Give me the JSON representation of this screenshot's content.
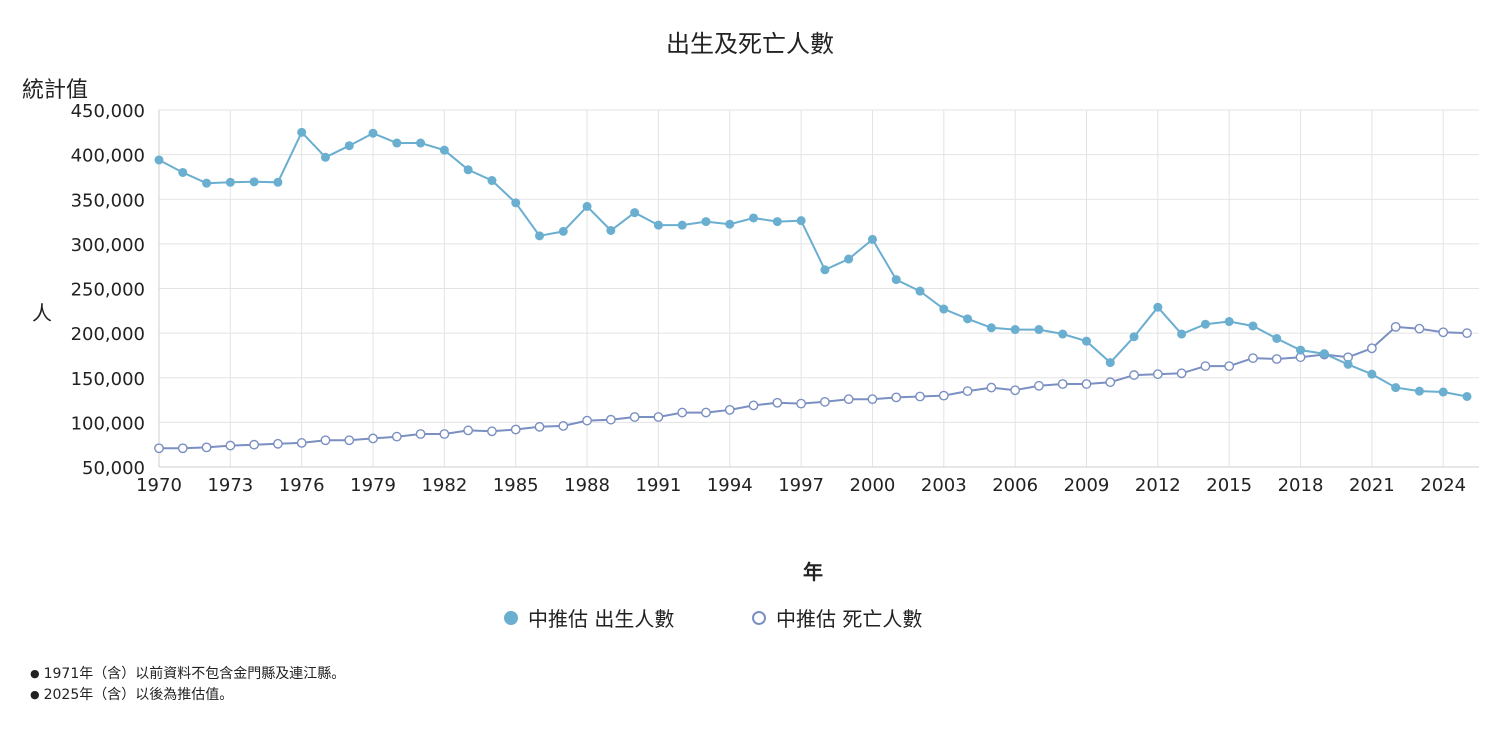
{
  "chart_data": {
    "type": "line",
    "title": "出生及死亡人數",
    "ylabel_top": "統計值",
    "ylabel": "人",
    "xlabel": "年",
    "ylim": [
      50000,
      450000
    ],
    "yticks": [
      "450,000",
      "400,000",
      "350,000",
      "300,000",
      "250,000",
      "200,000",
      "150,000",
      "100,000",
      "50,000"
    ],
    "ytick_values": [
      450000,
      400000,
      350000,
      300000,
      250000,
      200000,
      150000,
      100000,
      50000
    ],
    "xlim": [
      1970,
      2025
    ],
    "xticks": [
      "1970",
      "1973",
      "1976",
      "1979",
      "1982",
      "1985",
      "1988",
      "1991",
      "1994",
      "1997",
      "2000",
      "2003",
      "2006",
      "2009",
      "2012",
      "2015",
      "2018",
      "2021",
      "2024"
    ],
    "x": [
      1970,
      1971,
      1972,
      1973,
      1974,
      1975,
      1976,
      1977,
      1978,
      1979,
      1980,
      1981,
      1982,
      1983,
      1984,
      1985,
      1986,
      1987,
      1988,
      1989,
      1990,
      1991,
      1992,
      1993,
      1994,
      1995,
      1996,
      1997,
      1998,
      1999,
      2000,
      2001,
      2002,
      2003,
      2004,
      2005,
      2006,
      2007,
      2008,
      2009,
      2010,
      2011,
      2012,
      2013,
      2014,
      2015,
      2016,
      2017,
      2018,
      2019,
      2020,
      2021,
      2022,
      2023,
      2024,
      2025
    ],
    "grid": true,
    "legend_position": "bottom",
    "series": [
      {
        "name": "中推估 出生人數",
        "color": "#6aaed0",
        "marker": "filled",
        "values": [
          394000,
          380000,
          368000,
          369000,
          369500,
          369000,
          425000,
          397000,
          410000,
          424000,
          413000,
          413000,
          405000,
          383000,
          371000,
          346000,
          309000,
          314000,
          342000,
          315000,
          335000,
          321000,
          321000,
          325000,
          322000,
          329000,
          325000,
          326000,
          271000,
          283000,
          305000,
          260000,
          247000,
          227000,
          216000,
          206000,
          204000,
          204000,
          199000,
          191000,
          167000,
          196000,
          229000,
          199000,
          210000,
          213000,
          208000,
          194000,
          181000,
          177000,
          165000,
          154000,
          139000,
          135000,
          134000,
          129000
        ]
      },
      {
        "name": "中推估 死亡人數",
        "color": "#7a8fc2",
        "marker": "hollow",
        "values": [
          71000,
          71000,
          72000,
          74000,
          75000,
          76000,
          77000,
          80000,
          80000,
          82000,
          84000,
          87000,
          87000,
          91000,
          90000,
          92000,
          95000,
          96000,
          102000,
          103000,
          106000,
          106000,
          111000,
          111000,
          114000,
          119000,
          122000,
          121000,
          123000,
          126000,
          126000,
          128000,
          129000,
          130000,
          135000,
          139000,
          136000,
          141000,
          143000,
          143000,
          145000,
          153000,
          154000,
          155000,
          163000,
          163000,
          172000,
          171000,
          173000,
          176000,
          173000,
          183000,
          207000,
          205000,
          201000,
          200000
        ]
      }
    ]
  },
  "notes": [
    "1971年（含）以前資料不包含金門縣及連江縣。",
    "2025年（含）以後為推估值。"
  ]
}
